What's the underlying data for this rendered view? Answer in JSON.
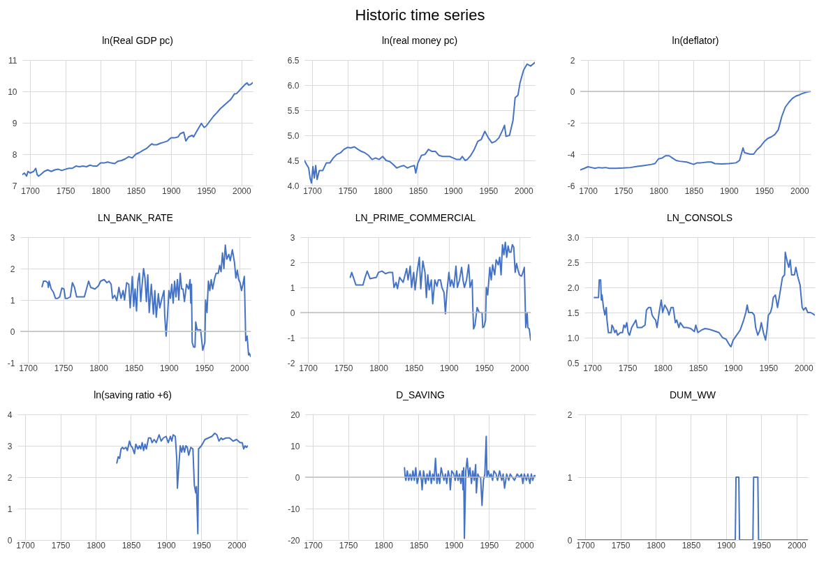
{
  "chart_data": [
    {
      "type": "other",
      "title": "Historic time series"
    },
    {
      "type": "line",
      "title": "ln(Real GDP pc)",
      "color": "#4472c4",
      "grid": true,
      "xlim": [
        1689,
        2016
      ],
      "xticks": [
        1700,
        1750,
        1800,
        1850,
        1900,
        1950,
        2000
      ],
      "ylim": [
        7,
        11
      ],
      "yticks": [
        7,
        8,
        9,
        10,
        11
      ],
      "x": [
        1689,
        1692,
        1695,
        1697,
        1700,
        1705,
        1708,
        1710,
        1712,
        1715,
        1720,
        1725,
        1730,
        1735,
        1740,
        1745,
        1750,
        1755,
        1760,
        1765,
        1770,
        1775,
        1780,
        1785,
        1790,
        1795,
        1800,
        1805,
        1810,
        1815,
        1820,
        1825,
        1830,
        1835,
        1840,
        1845,
        1850,
        1855,
        1860,
        1865,
        1870,
        1873,
        1875,
        1880,
        1885,
        1890,
        1895,
        1900,
        1905,
        1910,
        1913,
        1918,
        1921,
        1925,
        1930,
        1932,
        1937,
        1943,
        1947,
        1950,
        1955,
        1960,
        1965,
        1970,
        1975,
        1980,
        1985,
        1990,
        1993,
        2000,
        2005,
        2008,
        2010,
        2013,
        2016
      ],
      "values": [
        7.35,
        7.4,
        7.3,
        7.45,
        7.4,
        7.45,
        7.55,
        7.35,
        7.3,
        7.35,
        7.45,
        7.5,
        7.45,
        7.5,
        7.52,
        7.48,
        7.52,
        7.55,
        7.55,
        7.62,
        7.6,
        7.62,
        7.6,
        7.65,
        7.62,
        7.62,
        7.72,
        7.72,
        7.75,
        7.72,
        7.7,
        7.78,
        7.8,
        7.85,
        7.92,
        7.88,
        8.0,
        8.05,
        8.12,
        8.18,
        8.28,
        8.33,
        8.3,
        8.3,
        8.35,
        8.38,
        8.42,
        8.52,
        8.52,
        8.55,
        8.65,
        8.7,
        8.42,
        8.55,
        8.6,
        8.55,
        8.75,
        8.98,
        8.85,
        8.9,
        9.05,
        9.2,
        9.32,
        9.45,
        9.55,
        9.65,
        9.75,
        9.92,
        9.93,
        10.1,
        10.22,
        10.27,
        10.2,
        10.22,
        10.28
      ]
    },
    {
      "type": "line",
      "title": "ln(real money pc)",
      "color": "#4472c4",
      "grid": true,
      "xlim": [
        1689,
        2016
      ],
      "xticks": [
        1700,
        1750,
        1800,
        1850,
        1900,
        1950,
        2000
      ],
      "ylim": [
        4,
        6.5
      ],
      "yticks": [
        {
          "value": 4,
          "label": "4.0"
        },
        {
          "value": 4.5,
          "label": "4.5"
        },
        {
          "value": 5,
          "label": "5.0"
        },
        {
          "value": 5.5,
          "label": "5.5"
        },
        {
          "value": 6,
          "label": "6.0"
        },
        {
          "value": 6.5,
          "label": "6.5"
        }
      ],
      "x": [
        1689,
        1692,
        1695,
        1697,
        1699,
        1701,
        1703,
        1705,
        1707,
        1710,
        1715,
        1720,
        1725,
        1730,
        1735,
        1740,
        1745,
        1750,
        1755,
        1760,
        1765,
        1770,
        1775,
        1780,
        1785,
        1790,
        1795,
        1800,
        1805,
        1810,
        1815,
        1820,
        1825,
        1830,
        1835,
        1840,
        1845,
        1847,
        1850,
        1855,
        1860,
        1865,
        1870,
        1875,
        1880,
        1885,
        1890,
        1895,
        1900,
        1905,
        1910,
        1913,
        1917,
        1920,
        1925,
        1930,
        1935,
        1940,
        1945,
        1950,
        1955,
        1960,
        1965,
        1970,
        1973,
        1975,
        1980,
        1985,
        1988,
        1992,
        1995,
        2000,
        2005,
        2010,
        2016
      ],
      "values": [
        4.5,
        4.42,
        4.35,
        4.15,
        4.05,
        4.38,
        4.15,
        4.4,
        4.12,
        4.3,
        4.3,
        4.45,
        4.45,
        4.55,
        4.62,
        4.65,
        4.72,
        4.76,
        4.75,
        4.77,
        4.72,
        4.68,
        4.65,
        4.6,
        4.52,
        4.55,
        4.52,
        4.58,
        4.5,
        4.48,
        4.42,
        4.35,
        4.38,
        4.4,
        4.35,
        4.38,
        4.4,
        4.25,
        4.45,
        4.6,
        4.62,
        4.72,
        4.68,
        4.68,
        4.6,
        4.58,
        4.58,
        4.58,
        4.55,
        4.52,
        4.52,
        4.58,
        4.5,
        4.52,
        4.6,
        4.72,
        4.88,
        4.92,
        5.08,
        4.95,
        4.85,
        4.88,
        4.95,
        5.1,
        5.2,
        4.98,
        5.0,
        5.3,
        5.75,
        5.8,
        6.05,
        6.3,
        6.42,
        6.38,
        6.45
      ]
    },
    {
      "type": "line",
      "title": "ln(deflator)",
      "color": "#4472c4",
      "grid": true,
      "xlim": [
        1689,
        2016
      ],
      "xticks": [
        1700,
        1750,
        1800,
        1850,
        1900,
        1950,
        2000
      ],
      "ylim": [
        -6,
        2
      ],
      "yticks": [
        -6,
        -4,
        -2,
        0,
        2
      ],
      "ref_lines": [
        {
          "axis": "y",
          "value": 0,
          "color": "#bfbfbf"
        }
      ],
      "x": [
        1689,
        1695,
        1700,
        1705,
        1710,
        1715,
        1720,
        1725,
        1730,
        1740,
        1750,
        1760,
        1770,
        1780,
        1790,
        1795,
        1800,
        1805,
        1810,
        1815,
        1820,
        1825,
        1830,
        1840,
        1850,
        1855,
        1860,
        1870,
        1875,
        1880,
        1890,
        1900,
        1910,
        1915,
        1920,
        1922,
        1930,
        1935,
        1940,
        1945,
        1950,
        1955,
        1960,
        1965,
        1970,
        1975,
        1980,
        1985,
        1990,
        1995,
        2000,
        2005,
        2010,
        2016
      ],
      "values": [
        -5.0,
        -4.9,
        -4.8,
        -4.85,
        -4.9,
        -4.85,
        -4.88,
        -4.85,
        -4.9,
        -4.9,
        -4.88,
        -4.85,
        -4.78,
        -4.72,
        -4.65,
        -4.6,
        -4.3,
        -4.25,
        -4.1,
        -4.1,
        -4.25,
        -4.4,
        -4.45,
        -4.5,
        -4.65,
        -4.55,
        -4.55,
        -4.5,
        -4.5,
        -4.6,
        -4.62,
        -4.6,
        -4.55,
        -4.4,
        -3.6,
        -3.9,
        -4.0,
        -4.0,
        -3.7,
        -3.5,
        -3.2,
        -3.0,
        -2.9,
        -2.75,
        -2.45,
        -1.6,
        -1.0,
        -0.7,
        -0.45,
        -0.3,
        -0.22,
        -0.12,
        -0.05,
        0.0
      ]
    },
    {
      "type": "line",
      "title": "LN_BANK_RATE",
      "color": "#4472c4",
      "grid": true,
      "xlim": [
        1689,
        2016
      ],
      "xticks": [
        1700,
        1750,
        1800,
        1850,
        1900,
        1950,
        2000
      ],
      "ylim": [
        -1,
        3
      ],
      "yticks": [
        -1,
        0,
        1,
        2,
        3
      ],
      "ref_lines": [
        {
          "axis": "y",
          "value": 0,
          "color": "#bfbfbf"
        }
      ],
      "x": [
        1720,
        1722,
        1725,
        1728,
        1729,
        1730,
        1733,
        1736,
        1739,
        1742,
        1745,
        1748,
        1751,
        1753,
        1756,
        1760,
        1763,
        1766,
        1769,
        1775,
        1780,
        1783,
        1786,
        1789,
        1795,
        1800,
        1803,
        1808,
        1812,
        1815,
        1818,
        1820,
        1823,
        1826,
        1829,
        1832,
        1835,
        1837,
        1840,
        1843,
        1845,
        1848,
        1850,
        1852,
        1854,
        1856,
        1858,
        1860,
        1862,
        1864,
        1866,
        1868,
        1870,
        1872,
        1875,
        1878,
        1880,
        1882,
        1885,
        1887,
        1890,
        1893,
        1894,
        1896,
        1898,
        1900,
        1902,
        1904,
        1906,
        1908,
        1910,
        1912,
        1914,
        1916,
        1918,
        1920,
        1922,
        1925,
        1928,
        1930,
        1931,
        1932,
        1933,
        1935,
        1937,
        1938,
        1940,
        1945,
        1948,
        1951,
        1952,
        1954,
        1956,
        1958,
        1960,
        1962,
        1965,
        1967,
        1970,
        1972,
        1974,
        1976,
        1978,
        1980,
        1982,
        1985,
        1987,
        1990,
        1993,
        1995,
        1997,
        1999,
        2001,
        2003,
        2005,
        2007,
        2009,
        2011,
        2013,
        2014,
        2016
      ],
      "values": [
        1.42,
        1.6,
        1.6,
        1.55,
        1.4,
        1.6,
        1.35,
        1.25,
        1.05,
        1.05,
        1.1,
        1.38,
        1.35,
        1.05,
        1.05,
        1.1,
        1.55,
        1.4,
        1.1,
        1.1,
        1.1,
        1.35,
        1.6,
        1.4,
        1.35,
        1.45,
        1.6,
        1.65,
        1.55,
        1.6,
        1.5,
        1.05,
        1.15,
        0.98,
        1.4,
        1.05,
        1.3,
        1.0,
        1.55,
        1.5,
        0.75,
        1.75,
        0.8,
        1.35,
        0.65,
        1.6,
        1.85,
        0.95,
        1.5,
        2.0,
        1.7,
        0.95,
        1.8,
        0.6,
        1.5,
        0.55,
        1.3,
        0.45,
        1.2,
        0.75,
        1.05,
        1.3,
        0.5,
        -0.15,
        0.5,
        1.3,
        1.05,
        1.5,
        0.9,
        1.6,
        1.1,
        1.65,
        1.0,
        1.85,
        1.35,
        1.35,
        0.95,
        1.5,
        1.35,
        1.65,
        0.9,
        1.5,
        -0.35,
        -0.5,
        -0.5,
        0.3,
        0.05,
        0.05,
        -0.6,
        -0.35,
        1.0,
        0.6,
        1.6,
        1.3,
        1.65,
        1.35,
        1.7,
        1.85,
        1.85,
        2.1,
        1.9,
        2.5,
        2.0,
        2.75,
        2.3,
        2.45,
        2.25,
        2.6,
        2.2,
        1.7,
        1.95,
        1.65,
        1.55,
        1.3,
        1.5,
        1.75,
        -0.3,
        -0.15,
        -0.75,
        -0.7,
        -0.8
      ]
    },
    {
      "type": "line",
      "title": "LN_PRIME_COMMERCIAL",
      "color": "#4472c4",
      "grid": true,
      "xlim": [
        1689,
        2016
      ],
      "xticks": [
        1700,
        1750,
        1800,
        1850,
        1900,
        1950,
        2000
      ],
      "ylim": [
        -2,
        3
      ],
      "yticks": [
        -2,
        -1,
        0,
        1,
        2,
        3
      ],
      "ref_lines": [
        {
          "axis": "y",
          "value": 0,
          "color": "#bfbfbf"
        }
      ],
      "x": [
        1760,
        1762,
        1765,
        1768,
        1778,
        1781,
        1784,
        1788,
        1797,
        1800,
        1805,
        1810,
        1815,
        1820,
        1822,
        1825,
        1827,
        1830,
        1835,
        1840,
        1842,
        1845,
        1847,
        1850,
        1852,
        1855,
        1858,
        1860,
        1863,
        1866,
        1868,
        1870,
        1872,
        1875,
        1877,
        1880,
        1883,
        1885,
        1888,
        1890,
        1893,
        1895,
        1897,
        1900,
        1902,
        1904,
        1907,
        1910,
        1912,
        1915,
        1918,
        1920,
        1922,
        1925,
        1928,
        1930,
        1933,
        1934,
        1935,
        1937,
        1940,
        1943,
        1947,
        1948,
        1950,
        1952,
        1953,
        1955,
        1958,
        1960,
        1962,
        1965,
        1967,
        1970,
        1972,
        1974,
        1976,
        1978,
        1980,
        1982,
        1984,
        1986,
        1988,
        1990,
        1992,
        1994,
        1996,
        1998,
        2000,
        2003,
        2005,
        2007,
        2009,
        2011,
        2012,
        2014,
        2016
      ],
      "values": [
        1.4,
        1.6,
        1.35,
        1.1,
        1.1,
        1.4,
        1.65,
        1.35,
        1.4,
        1.6,
        1.65,
        1.55,
        1.6,
        1.6,
        1.0,
        1.2,
        0.95,
        1.4,
        1.2,
        1.75,
        1.3,
        1.85,
        1.0,
        1.6,
        0.9,
        1.65,
        2.2,
        0.95,
        2.05,
        1.6,
        0.6,
        1.5,
        0.9,
        1.3,
        0.35,
        1.3,
        1.05,
        1.3,
        1.3,
        1.0,
        0.8,
        -0.05,
        0.8,
        1.6,
        1.05,
        1.3,
        1.0,
        1.85,
        1.0,
        1.3,
        1.8,
        1.3,
        1.0,
        1.3,
        1.9,
        1.0,
        1.3,
        0.1,
        -0.65,
        -0.5,
        0.2,
        0.0,
        0.0,
        -0.6,
        -0.55,
        -0.3,
        1.0,
        0.7,
        1.8,
        1.3,
        1.9,
        1.5,
        2.1,
        1.9,
        2.2,
        1.5,
        2.7,
        2.3,
        2.8,
        2.2,
        2.65,
        2.4,
        2.4,
        2.7,
        2.6,
        1.6,
        1.95,
        1.7,
        1.5,
        1.45,
        1.6,
        1.8,
        -0.6,
        0.0,
        -0.6,
        -0.65,
        -1.1
      ]
    },
    {
      "type": "line",
      "title": "LN_CONSOLS",
      "color": "#4472c4",
      "grid": true,
      "xlim": [
        1689,
        2016
      ],
      "xticks": [
        1700,
        1750,
        1800,
        1850,
        1900,
        1950,
        2000
      ],
      "ylim": [
        0.5,
        3
      ],
      "yticks": [
        {
          "value": 0.5,
          "label": "0.5"
        },
        {
          "value": 1,
          "label": "1.0"
        },
        {
          "value": 1.5,
          "label": "1.5"
        },
        {
          "value": 2,
          "label": "2.0"
        },
        {
          "value": 2.5,
          "label": "2.5"
        },
        {
          "value": 3,
          "label": "3.0"
        }
      ],
      "x": [
        1703,
        1709,
        1710,
        1712,
        1713,
        1714,
        1716,
        1718,
        1720,
        1721,
        1723,
        1727,
        1728,
        1730,
        1732,
        1734,
        1736,
        1740,
        1743,
        1745,
        1747,
        1749,
        1751,
        1753,
        1756,
        1760,
        1762,
        1764,
        1770,
        1775,
        1777,
        1780,
        1783,
        1785,
        1787,
        1790,
        1792,
        1795,
        1798,
        1800,
        1803,
        1807,
        1809,
        1812,
        1815,
        1818,
        1820,
        1823,
        1825,
        1830,
        1835,
        1840,
        1845,
        1847,
        1850,
        1855,
        1860,
        1865,
        1870,
        1880,
        1885,
        1890,
        1895,
        1897,
        1900,
        1905,
        1910,
        1915,
        1918,
        1920,
        1922,
        1927,
        1930,
        1932,
        1935,
        1938,
        1940,
        1943,
        1946,
        1948,
        1950,
        1953,
        1955,
        1957,
        1960,
        1963,
        1966,
        1970,
        1973,
        1974,
        1977,
        1979,
        1981,
        1983,
        1987,
        1989,
        1992,
        1995,
        1998,
        2000,
        2003,
        2006,
        2010,
        2016
      ],
      "values": [
        1.8,
        1.8,
        2.15,
        2.15,
        1.75,
        1.85,
        1.6,
        1.45,
        1.6,
        1.35,
        1.1,
        1.1,
        1.25,
        1.2,
        1.1,
        1.15,
        1.05,
        1.1,
        1.1,
        1.25,
        1.2,
        1.3,
        1.1,
        1.05,
        1.2,
        1.3,
        1.35,
        1.2,
        1.2,
        1.25,
        1.55,
        1.6,
        1.6,
        1.45,
        1.4,
        1.35,
        1.2,
        1.5,
        1.75,
        1.5,
        1.65,
        1.55,
        1.45,
        1.6,
        1.6,
        1.3,
        1.35,
        1.2,
        1.3,
        1.2,
        1.2,
        1.18,
        1.12,
        1.25,
        1.1,
        1.15,
        1.18,
        1.17,
        1.15,
        1.1,
        1.0,
        0.97,
        0.85,
        0.82,
        0.95,
        1.05,
        1.15,
        1.35,
        1.5,
        1.65,
        1.5,
        1.5,
        1.45,
        1.2,
        1.05,
        1.15,
        1.3,
        1.1,
        0.95,
        1.15,
        1.45,
        1.5,
        1.6,
        1.8,
        1.85,
        1.6,
        1.85,
        2.2,
        2.25,
        2.7,
        2.5,
        2.4,
        2.55,
        2.25,
        2.25,
        2.4,
        2.2,
        2.05,
        1.6,
        1.55,
        1.6,
        1.5,
        1.5,
        1.45
      ]
    },
    {
      "type": "line",
      "title": "ln(saving ratio +6)",
      "color": "#4472c4",
      "grid": true,
      "xlim": [
        1689,
        2016
      ],
      "xticks": [
        1700,
        1750,
        1800,
        1850,
        1900,
        1950,
        2000
      ],
      "ylim": [
        0,
        4
      ],
      "yticks": [
        0,
        1,
        2,
        3,
        4
      ],
      "x": [
        1830,
        1832,
        1834,
        1836,
        1838,
        1840,
        1843,
        1845,
        1848,
        1850,
        1852,
        1855,
        1857,
        1860,
        1862,
        1864,
        1866,
        1868,
        1870,
        1872,
        1875,
        1878,
        1880,
        1883,
        1886,
        1890,
        1893,
        1896,
        1900,
        1903,
        1906,
        1908,
        1910,
        1913,
        1915,
        1916,
        1918,
        1920,
        1922,
        1924,
        1926,
        1928,
        1930,
        1932,
        1935,
        1938,
        1940,
        1942,
        1943,
        1945,
        1946,
        1948,
        1950,
        1955,
        1960,
        1965,
        1969,
        1972,
        1975,
        1978,
        1980,
        1985,
        1990,
        1995,
        2000,
        2005,
        2008,
        2010,
        2012,
        2014,
        2016
      ],
      "values": [
        2.45,
        2.65,
        2.6,
        2.9,
        2.95,
        2.9,
        2.95,
        2.85,
        3.15,
        3.0,
        2.95,
        2.75,
        3.05,
        2.9,
        3.0,
        2.9,
        3.1,
        2.85,
        3.05,
        2.9,
        3.25,
        3.25,
        3.1,
        3.2,
        3.1,
        3.35,
        3.15,
        3.25,
        3.3,
        3.1,
        3.3,
        3.15,
        3.35,
        3.3,
        2.6,
        1.65,
        2.35,
        3.0,
        2.8,
        3.0,
        2.8,
        3.0,
        2.95,
        2.7,
        2.95,
        2.9,
        1.75,
        1.5,
        1.7,
        0.2,
        2.9,
        2.95,
        3.0,
        3.2,
        3.25,
        3.3,
        3.4,
        3.35,
        3.15,
        3.25,
        3.2,
        3.25,
        3.25,
        3.15,
        3.2,
        3.1,
        3.1,
        2.9,
        3.0,
        2.95,
        3.0
      ]
    },
    {
      "type": "line",
      "title": "D_SAVING",
      "color": "#4472c4",
      "grid": true,
      "xlim": [
        1689,
        2016
      ],
      "xticks": [
        1700,
        1750,
        1800,
        1850,
        1900,
        1950,
        2000
      ],
      "ylim": [
        -20,
        20
      ],
      "yticks": [
        -20,
        -10,
        0,
        10,
        20
      ],
      "ref_lines": [
        {
          "axis": "y",
          "value": 0,
          "color": "#bfbfbf"
        }
      ],
      "x": [
        1830,
        1831,
        1832,
        1834,
        1836,
        1838,
        1840,
        1842,
        1844,
        1846,
        1848,
        1850,
        1852,
        1854,
        1855,
        1857,
        1860,
        1862,
        1864,
        1866,
        1868,
        1870,
        1872,
        1874,
        1876,
        1878,
        1880,
        1882,
        1884,
        1886,
        1888,
        1890,
        1892,
        1894,
        1895,
        1897,
        1900,
        1902,
        1904,
        1906,
        1908,
        1910,
        1912,
        1913,
        1914,
        1915,
        1917,
        1919,
        1921,
        1923,
        1925,
        1927,
        1929,
        1931,
        1932,
        1934,
        1936,
        1938,
        1940,
        1942,
        1944,
        1946,
        1947,
        1949,
        1951,
        1953,
        1955,
        1957,
        1960,
        1962,
        1965,
        1968,
        1970,
        1972,
        1975,
        1978,
        1980,
        1983,
        1986,
        1990,
        1993,
        1996,
        1998,
        2000,
        2003,
        2005,
        2008,
        2010,
        2012,
        2014,
        2016
      ],
      "values": [
        3,
        0,
        -1,
        2,
        -1,
        1,
        -1,
        2,
        -1,
        3,
        -2,
        0,
        2,
        -1,
        -4,
        2,
        -2,
        1,
        -1,
        2,
        -2,
        1,
        -1,
        6,
        -2,
        1,
        -2,
        3,
        1,
        -1,
        1,
        -2,
        2,
        0,
        -4,
        2,
        1,
        -1,
        2,
        -1,
        1,
        -2,
        2,
        -4,
        3,
        -19.5,
        2,
        6,
        0,
        3,
        -2,
        2,
        -1,
        4,
        -5,
        1,
        0,
        0,
        -9,
        -1,
        1,
        13,
        0,
        2,
        0,
        1,
        -1,
        2,
        1,
        -1,
        2,
        -1,
        1,
        -3.5,
        1,
        -1,
        1,
        0,
        -1,
        1,
        0,
        1,
        -2,
        1,
        -1,
        1,
        -2,
        1,
        -1,
        0.5,
        0.5
      ]
    },
    {
      "type": "line",
      "title": "DUM_WW",
      "color": "#4472c4",
      "grid": true,
      "xlim": [
        1689,
        2016
      ],
      "xticks": [
        1700,
        1750,
        1800,
        1850,
        1900,
        1950,
        2000
      ],
      "ylim": [
        0,
        2
      ],
      "yticks": [
        0,
        1,
        2
      ],
      "x": [
        1689,
        1913,
        1914,
        1918,
        1919,
        1938,
        1939,
        1945,
        1946,
        2016
      ],
      "values": [
        0,
        0,
        1,
        1,
        0,
        0,
        1,
        1,
        0,
        0
      ]
    }
  ]
}
